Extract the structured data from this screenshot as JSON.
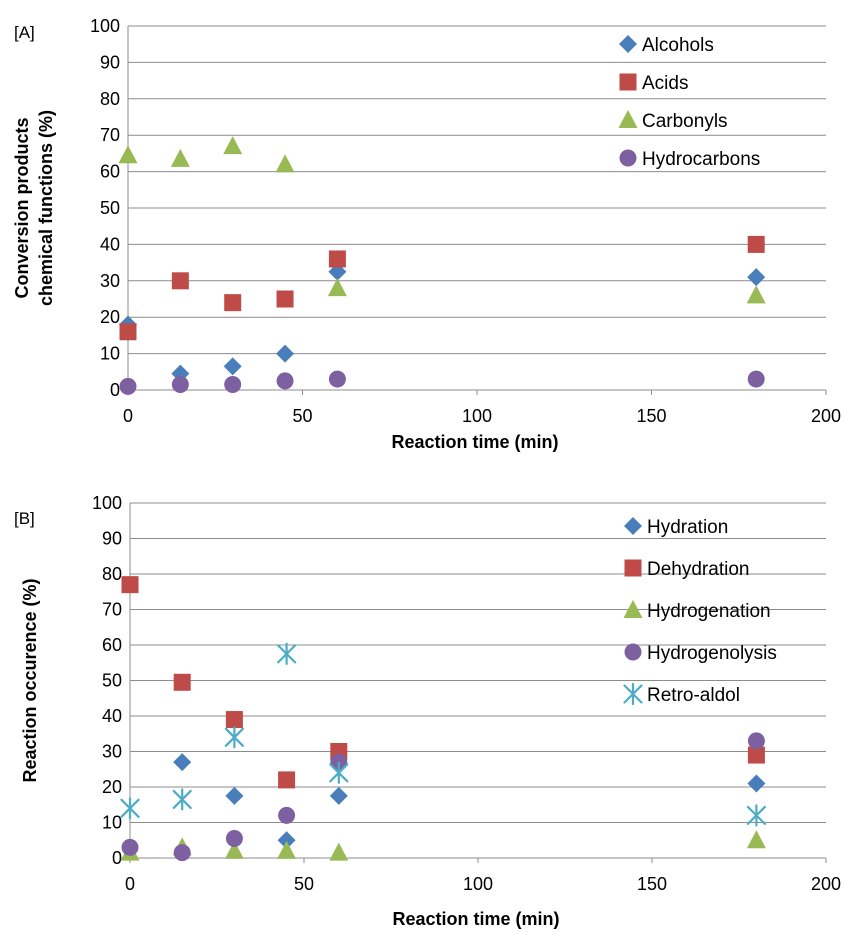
{
  "chart_data": [
    {
      "type": "scatter",
      "panel_label": "[A]",
      "xlabel": "Reaction time (min)",
      "ylabel": [
        "Conversion products",
        "chemical functions (%)"
      ],
      "xlim": [
        0,
        200
      ],
      "ylim": [
        0,
        100
      ],
      "xticks": [
        0,
        50,
        100,
        150,
        200
      ],
      "yticks": [
        0,
        10,
        20,
        30,
        40,
        50,
        60,
        70,
        80,
        90,
        100
      ],
      "grid": "horizontal",
      "legend_position": "top-right",
      "series": [
        {
          "name": "Alcohols",
          "marker": "diamond",
          "color": "#4a7ebb",
          "x": [
            0,
            15,
            30,
            45,
            60,
            180
          ],
          "y": [
            18,
            4.5,
            6.5,
            10,
            32.5,
            31
          ]
        },
        {
          "name": "Acids",
          "marker": "square",
          "color": "#be4b48",
          "x": [
            0,
            15,
            30,
            45,
            60,
            180
          ],
          "y": [
            16,
            30,
            24,
            25,
            36,
            40
          ]
        },
        {
          "name": "Carbonyls",
          "marker": "triangle",
          "color": "#98b954",
          "x": [
            0,
            15,
            30,
            45,
            60,
            180
          ],
          "y": [
            64.5,
            63.5,
            67,
            62,
            28,
            26
          ]
        },
        {
          "name": "Hydrocarbons",
          "marker": "circle",
          "color": "#7d60a0",
          "x": [
            0,
            15,
            30,
            45,
            60,
            180
          ],
          "y": [
            1,
            1.5,
            1.5,
            2.5,
            3,
            3
          ]
        }
      ]
    },
    {
      "type": "scatter",
      "panel_label": "[B]",
      "xlabel": "Reaction time (min)",
      "ylabel": [
        "Reaction occurence (%)"
      ],
      "xlim": [
        0,
        200
      ],
      "ylim": [
        0,
        100
      ],
      "xticks": [
        0,
        50,
        100,
        150,
        200
      ],
      "yticks": [
        0,
        10,
        20,
        30,
        40,
        50,
        60,
        70,
        80,
        90,
        100
      ],
      "grid": "horizontal",
      "legend_position": "top-right",
      "series": [
        {
          "name": "Hydration",
          "marker": "diamond",
          "color": "#4a7ebb",
          "x": [
            15,
            30,
            45,
            60,
            180
          ],
          "y": [
            27,
            17.5,
            5,
            17.5,
            21
          ]
        },
        {
          "name": "Dehydration",
          "marker": "square",
          "color": "#be4b48",
          "x": [
            0,
            15,
            30,
            45,
            60,
            180
          ],
          "y": [
            77,
            49.5,
            39,
            22,
            30,
            29
          ]
        },
        {
          "name": "Hydrogenation",
          "marker": "triangle",
          "color": "#98b954",
          "x": [
            0,
            15,
            30,
            45,
            60,
            180
          ],
          "y": [
            1.5,
            3,
            2,
            2,
            1.5,
            5
          ]
        },
        {
          "name": "Hydrogenolysis",
          "marker": "circle",
          "color": "#7d60a0",
          "x": [
            0,
            15,
            30,
            45,
            60,
            180
          ],
          "y": [
            3,
            1.5,
            5.5,
            12,
            27,
            33
          ]
        },
        {
          "name": "Retro-aldol",
          "marker": "star",
          "color": "#4bacc6",
          "x": [
            0,
            15,
            30,
            45,
            60,
            180
          ],
          "y": [
            14,
            16.5,
            34,
            57.5,
            24,
            12
          ]
        }
      ]
    }
  ]
}
